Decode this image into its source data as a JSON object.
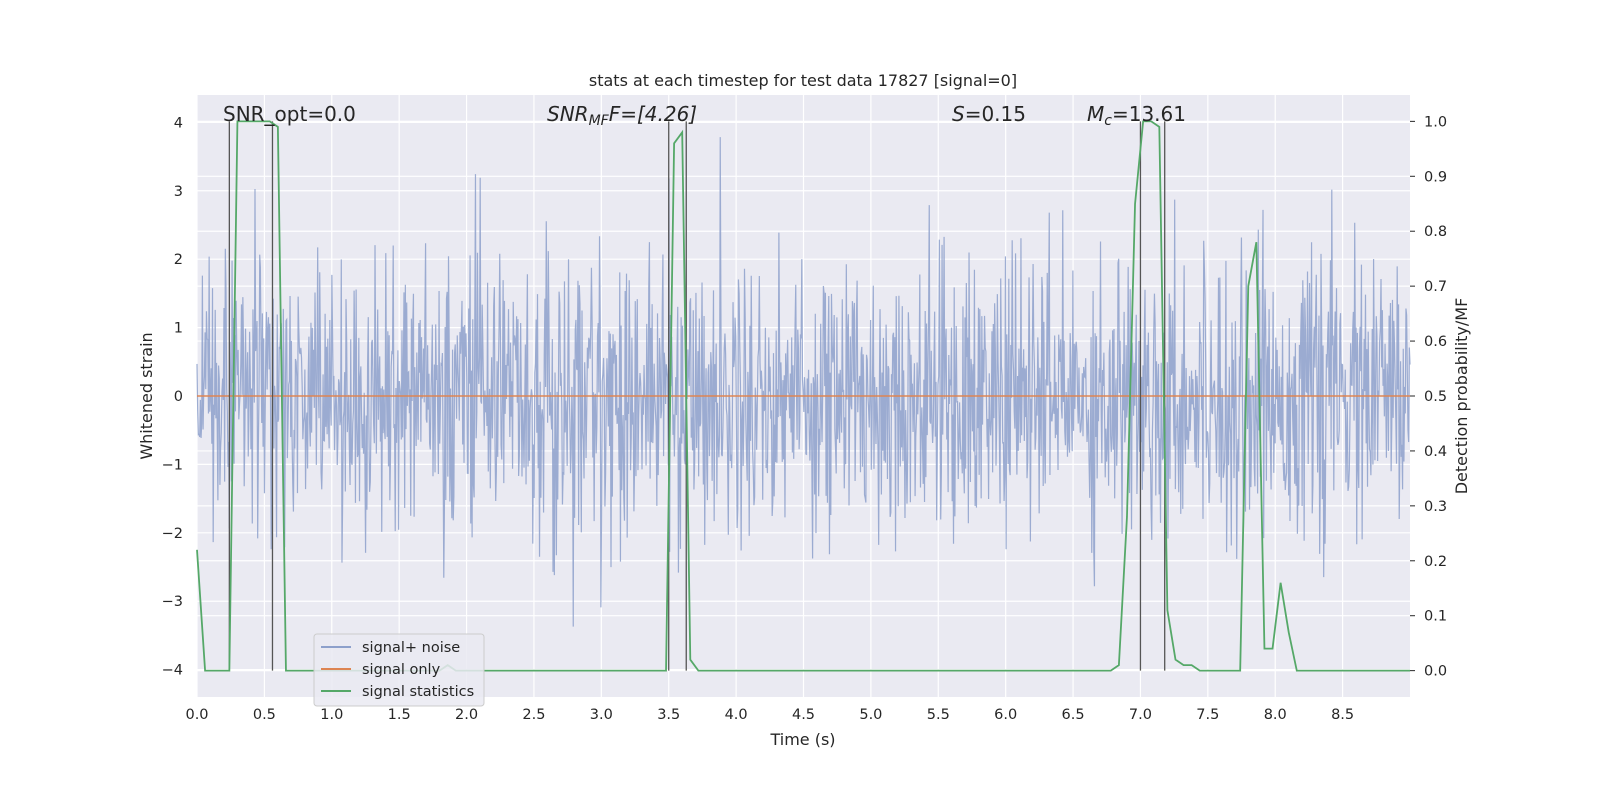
{
  "chart_data": {
    "type": "line",
    "title": "stats at each timestep for test data 17827 [signal=0]",
    "xlabel": "Time (s)",
    "ylabel": "Whitened strain",
    "y2label": "Detection probability/MF",
    "xlim": [
      0,
      9.0
    ],
    "ylim": [
      -4.4,
      4.4
    ],
    "y2lim": [
      -0.048,
      1.048
    ],
    "x_ticks": [
      "0.0",
      "0.5",
      "1.0",
      "1.5",
      "2.0",
      "2.5",
      "3.0",
      "3.5",
      "4.0",
      "4.5",
      "5.0",
      "5.5",
      "6.0",
      "6.5",
      "7.0",
      "7.5",
      "8.0",
      "8.5"
    ],
    "y_ticks": [
      "4",
      "3",
      "2",
      "1",
      "0",
      "−1",
      "−2",
      "−3",
      "−4"
    ],
    "y2_ticks": [
      "1.0",
      "0.9",
      "0.8",
      "0.7",
      "0.6",
      "0.5",
      "0.4",
      "0.3",
      "0.2",
      "0.1",
      "0.0"
    ],
    "annotations": {
      "snr_opt": "SNR_opt=0.0",
      "snr_mf_name": "SNR",
      "snr_mf_sub": "MF",
      "snr_mf_value": "F=[4.26]",
      "s_name": "S",
      "s_value": "=0.15",
      "mc_name": "M",
      "mc_sub": "c",
      "mc_value": "=13.61"
    },
    "series": [
      {
        "name": "signal+ noise",
        "color": "#8da0cb",
        "axis": "left",
        "kind": "noise",
        "n_samples": 1800,
        "sigma": 1.0,
        "amplitude_range": [
          -4.4,
          4.4
        ]
      },
      {
        "name": "signal only",
        "color": "#dd8452",
        "axis": "left",
        "kind": "line",
        "x": [
          0.0,
          9.0
        ],
        "y": [
          0.0,
          0.0
        ]
      },
      {
        "name": "signal statistics",
        "color": "#55a868",
        "axis": "right",
        "kind": "line",
        "x": [
          0.0,
          0.06,
          0.12,
          0.18,
          0.24,
          0.3,
          0.36,
          0.42,
          0.48,
          0.54,
          0.6,
          0.66,
          0.72,
          0.78,
          0.84,
          1.8,
          1.86,
          1.92,
          3.48,
          3.54,
          3.6,
          3.66,
          3.72,
          3.78,
          3.84,
          6.78,
          6.84,
          6.9,
          6.96,
          7.02,
          7.08,
          7.14,
          7.2,
          7.26,
          7.32,
          7.38,
          7.44,
          7.5,
          7.56,
          7.62,
          7.68,
          7.74,
          7.8,
          7.86,
          7.92,
          7.98,
          8.04,
          8.1,
          8.16,
          8.22,
          9.0
        ],
        "y": [
          0.22,
          0.0,
          0.0,
          0.0,
          0.0,
          1.0,
          1.0,
          1.0,
          1.0,
          1.0,
          0.99,
          0.0,
          0.0,
          0.0,
          0.0,
          0.0,
          0.01,
          0.0,
          0.0,
          0.96,
          0.98,
          0.02,
          0.0,
          0.0,
          0.0,
          0.0,
          0.01,
          0.28,
          0.85,
          1.0,
          1.0,
          0.99,
          0.11,
          0.02,
          0.01,
          0.01,
          0.0,
          0.0,
          0.0,
          0.0,
          0.0,
          0.0,
          0.7,
          0.78,
          0.04,
          0.04,
          0.16,
          0.07,
          0.0,
          0.0,
          0.0
        ]
      }
    ],
    "vlines": [
      0.24,
      0.56,
      3.5,
      3.63,
      7.0,
      7.18
    ],
    "legend": {
      "location": "lower-left",
      "entries": [
        "signal+ noise",
        "signal only",
        "signal statistics"
      ]
    }
  }
}
